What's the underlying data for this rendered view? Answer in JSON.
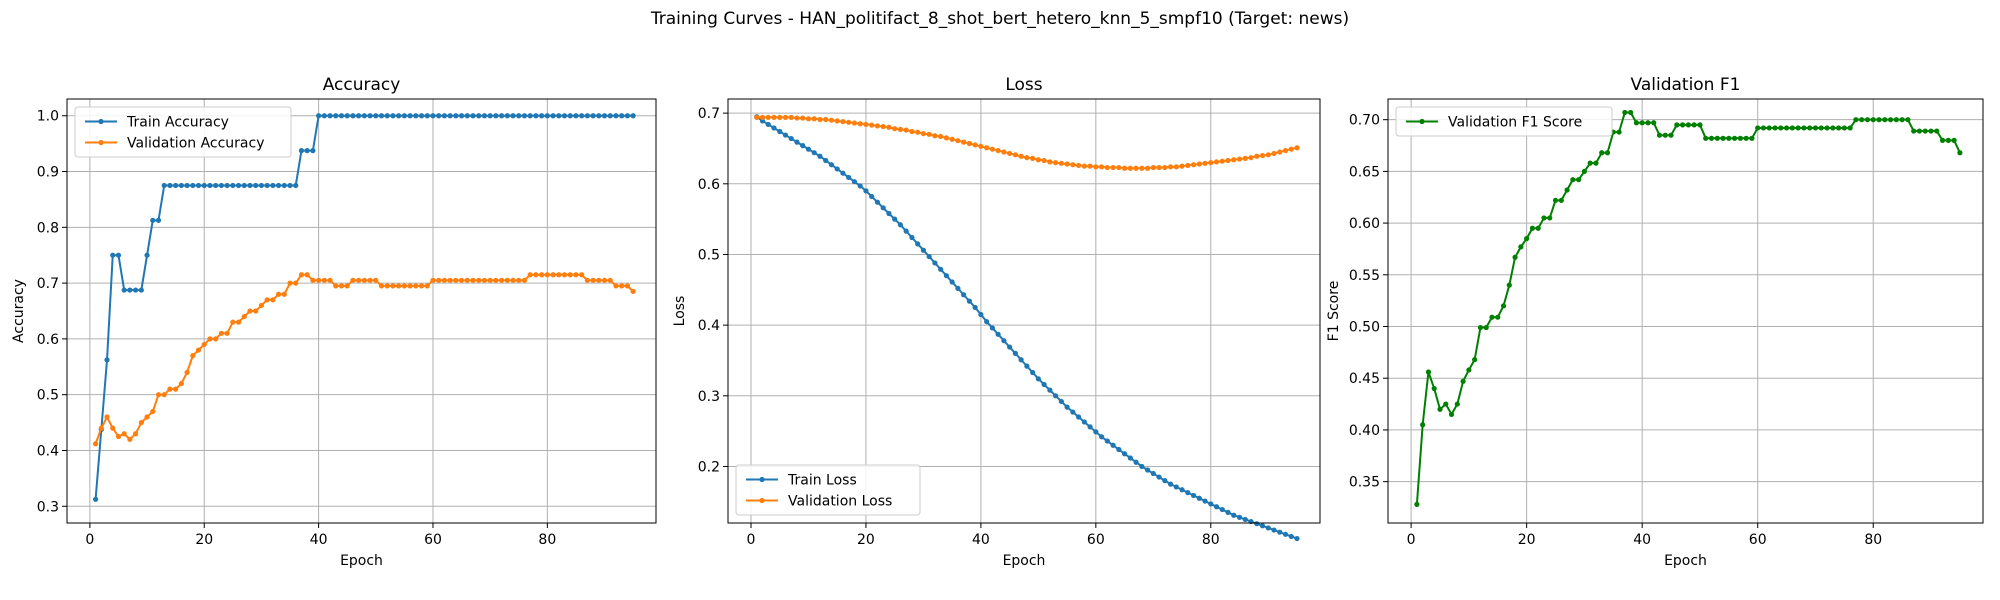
{
  "suptitle": "Training Curves - HAN_politifact_8_shot_bert_hetero_knn_5_smpf10 (Target: news)",
  "colors": {
    "blue": "#1f77b4",
    "orange": "#ff7f0e",
    "green": "#008000",
    "grid": "#b0b0b0"
  },
  "chart_data": [
    {
      "type": "line",
      "title": "Accuracy",
      "xlabel": "Epoch",
      "ylabel": "Accuracy",
      "xlim": [
        -4,
        99
      ],
      "ylim": [
        0.27,
        1.03
      ],
      "xticks": [
        0,
        20,
        40,
        60,
        80
      ],
      "yticks": [
        0.3,
        0.4,
        0.5,
        0.6,
        0.7,
        0.8,
        0.9,
        1.0
      ],
      "ytick_labels": [
        "0.3",
        "0.4",
        "0.5",
        "0.6",
        "0.7",
        "0.8",
        "0.9",
        "1.0"
      ],
      "grid": true,
      "legend_loc": "upper-left",
      "x": [
        1,
        2,
        3,
        4,
        5,
        6,
        7,
        8,
        9,
        10,
        11,
        12,
        13,
        14,
        15,
        16,
        17,
        18,
        19,
        20,
        21,
        22,
        23,
        24,
        25,
        26,
        27,
        28,
        29,
        30,
        31,
        32,
        33,
        34,
        35,
        36,
        37,
        38,
        39,
        40,
        41,
        42,
        43,
        44,
        45,
        46,
        47,
        48,
        49,
        50,
        51,
        52,
        53,
        54,
        55,
        56,
        57,
        58,
        59,
        60,
        61,
        62,
        63,
        64,
        65,
        66,
        67,
        68,
        69,
        70,
        71,
        72,
        73,
        74,
        75,
        76,
        77,
        78,
        79,
        80,
        81,
        82,
        83,
        84,
        85,
        86,
        87,
        88,
        89,
        90,
        91,
        92,
        93,
        94,
        95
      ],
      "series": [
        {
          "name": "Train Accuracy",
          "color": "#1f77b4",
          "values": [
            0.3125,
            0.4375,
            0.5625,
            0.75,
            0.75,
            0.6875,
            0.6875,
            0.6875,
            0.6875,
            0.75,
            0.8125,
            0.8125,
            0.875,
            0.875,
            0.875,
            0.875,
            0.875,
            0.875,
            0.875,
            0.875,
            0.875,
            0.875,
            0.875,
            0.875,
            0.875,
            0.875,
            0.875,
            0.875,
            0.875,
            0.875,
            0.875,
            0.875,
            0.875,
            0.875,
            0.875,
            0.875,
            0.9375,
            0.9375,
            0.9375,
            1,
            1,
            1,
            1,
            1,
            1,
            1,
            1,
            1,
            1,
            1,
            1,
            1,
            1,
            1,
            1,
            1,
            1,
            1,
            1,
            1,
            1,
            1,
            1,
            1,
            1,
            1,
            1,
            1,
            1,
            1,
            1,
            1,
            1,
            1,
            1,
            1,
            1,
            1,
            1,
            1,
            1,
            1,
            1,
            1,
            1,
            1,
            1,
            1,
            1,
            1,
            1,
            1,
            1,
            1,
            1
          ]
        },
        {
          "name": "Validation Accuracy",
          "color": "#ff7f0e",
          "values": [
            0.412,
            0.44,
            0.46,
            0.44,
            0.425,
            0.43,
            0.42,
            0.43,
            0.45,
            0.46,
            0.47,
            0.5,
            0.5,
            0.51,
            0.51,
            0.52,
            0.54,
            0.57,
            0.58,
            0.59,
            0.6,
            0.6,
            0.61,
            0.61,
            0.63,
            0.63,
            0.64,
            0.65,
            0.65,
            0.66,
            0.67,
            0.67,
            0.68,
            0.68,
            0.7,
            0.7,
            0.715,
            0.715,
            0.705,
            0.705,
            0.705,
            0.705,
            0.695,
            0.695,
            0.695,
            0.705,
            0.705,
            0.705,
            0.705,
            0.705,
            0.695,
            0.695,
            0.695,
            0.695,
            0.695,
            0.695,
            0.695,
            0.695,
            0.695,
            0.705,
            0.705,
            0.705,
            0.705,
            0.705,
            0.705,
            0.705,
            0.705,
            0.705,
            0.705,
            0.705,
            0.705,
            0.705,
            0.705,
            0.705,
            0.705,
            0.705,
            0.715,
            0.715,
            0.715,
            0.715,
            0.715,
            0.715,
            0.715,
            0.715,
            0.715,
            0.715,
            0.705,
            0.705,
            0.705,
            0.705,
            0.705,
            0.695,
            0.695,
            0.695,
            0.685
          ]
        }
      ]
    },
    {
      "type": "line",
      "title": "Loss",
      "xlabel": "Epoch",
      "ylabel": "Loss",
      "xlim": [
        -4,
        99
      ],
      "ylim": [
        0.12,
        0.72
      ],
      "xticks": [
        0,
        20,
        40,
        60,
        80
      ],
      "yticks": [
        0.2,
        0.3,
        0.4,
        0.5,
        0.6,
        0.7
      ],
      "ytick_labels": [
        "0.2",
        "0.3",
        "0.4",
        "0.5",
        "0.6",
        "0.7"
      ],
      "grid": true,
      "legend_loc": "lower-left",
      "x": [
        1,
        2,
        3,
        4,
        5,
        6,
        7,
        8,
        9,
        10,
        11,
        12,
        13,
        14,
        15,
        16,
        17,
        18,
        19,
        20,
        21,
        22,
        23,
        24,
        25,
        26,
        27,
        28,
        29,
        30,
        31,
        32,
        33,
        34,
        35,
        36,
        37,
        38,
        39,
        40,
        41,
        42,
        43,
        44,
        45,
        46,
        47,
        48,
        49,
        50,
        51,
        52,
        53,
        54,
        55,
        56,
        57,
        58,
        59,
        60,
        61,
        62,
        63,
        64,
        65,
        66,
        67,
        68,
        69,
        70,
        71,
        72,
        73,
        74,
        75,
        76,
        77,
        78,
        79,
        80,
        81,
        82,
        83,
        84,
        85,
        86,
        87,
        88,
        89,
        90,
        91,
        92,
        93,
        94,
        95
      ],
      "series": [
        {
          "name": "Train Loss",
          "color": "#1f77b4",
          "values": [
            0.695,
            0.689,
            0.684,
            0.679,
            0.674,
            0.669,
            0.664,
            0.659,
            0.654,
            0.649,
            0.644,
            0.639,
            0.633,
            0.627,
            0.621,
            0.615,
            0.609,
            0.603,
            0.597,
            0.59,
            0.582,
            0.574,
            0.566,
            0.558,
            0.55,
            0.542,
            0.533,
            0.524,
            0.515,
            0.506,
            0.497,
            0.488,
            0.479,
            0.47,
            0.461,
            0.452,
            0.443,
            0.434,
            0.425,
            0.415,
            0.405,
            0.396,
            0.387,
            0.378,
            0.369,
            0.36,
            0.351,
            0.342,
            0.333,
            0.324,
            0.316,
            0.308,
            0.3,
            0.292,
            0.284,
            0.277,
            0.27,
            0.263,
            0.256,
            0.249,
            0.242,
            0.236,
            0.23,
            0.224,
            0.218,
            0.212,
            0.206,
            0.2,
            0.195,
            0.19,
            0.185,
            0.18,
            0.175,
            0.171,
            0.167,
            0.163,
            0.159,
            0.155,
            0.151,
            0.147,
            0.143,
            0.139,
            0.135,
            0.131,
            0.128,
            0.125,
            0.122,
            0.119,
            0.116,
            0.113,
            0.11,
            0.107,
            0.104,
            0.101,
            0.098
          ]
        },
        {
          "name": "Validation Loss",
          "color": "#ff7f0e",
          "values": [
            0.694,
            0.694,
            0.694,
            0.694,
            0.694,
            0.694,
            0.694,
            0.693,
            0.693,
            0.692,
            0.692,
            0.691,
            0.691,
            0.69,
            0.689,
            0.688,
            0.687,
            0.686,
            0.685,
            0.684,
            0.683,
            0.682,
            0.681,
            0.68,
            0.678,
            0.677,
            0.676,
            0.674,
            0.673,
            0.671,
            0.67,
            0.668,
            0.667,
            0.665,
            0.663,
            0.661,
            0.659,
            0.657,
            0.655,
            0.653,
            0.651,
            0.649,
            0.647,
            0.645,
            0.643,
            0.641,
            0.639,
            0.637,
            0.636,
            0.634,
            0.633,
            0.631,
            0.63,
            0.629,
            0.628,
            0.627,
            0.626,
            0.625,
            0.625,
            0.624,
            0.624,
            0.623,
            0.623,
            0.623,
            0.622,
            0.622,
            0.622,
            0.622,
            0.622,
            0.623,
            0.623,
            0.623,
            0.624,
            0.624,
            0.625,
            0.626,
            0.627,
            0.628,
            0.629,
            0.63,
            0.631,
            0.632,
            0.633,
            0.634,
            0.635,
            0.636,
            0.637,
            0.639,
            0.64,
            0.641,
            0.643,
            0.645,
            0.647,
            0.649,
            0.651
          ]
        }
      ]
    },
    {
      "type": "line",
      "title": "Validation F1",
      "xlabel": "Epoch",
      "ylabel": "F1 Score",
      "xlim": [
        -4,
        99
      ],
      "ylim": [
        0.31,
        0.72
      ],
      "xticks": [
        0,
        20,
        40,
        60,
        80
      ],
      "yticks": [
        0.35,
        0.4,
        0.45,
        0.5,
        0.55,
        0.6,
        0.65,
        0.7
      ],
      "ytick_labels": [
        "0.35",
        "0.40",
        "0.45",
        "0.50",
        "0.55",
        "0.60",
        "0.65",
        "0.70"
      ],
      "grid": true,
      "legend_loc": "upper-left",
      "x": [
        1,
        2,
        3,
        4,
        5,
        6,
        7,
        8,
        9,
        10,
        11,
        12,
        13,
        14,
        15,
        16,
        17,
        18,
        19,
        20,
        21,
        22,
        23,
        24,
        25,
        26,
        27,
        28,
        29,
        30,
        31,
        32,
        33,
        34,
        35,
        36,
        37,
        38,
        39,
        40,
        41,
        42,
        43,
        44,
        45,
        46,
        47,
        48,
        49,
        50,
        51,
        52,
        53,
        54,
        55,
        56,
        57,
        58,
        59,
        60,
        61,
        62,
        63,
        64,
        65,
        66,
        67,
        68,
        69,
        70,
        71,
        72,
        73,
        74,
        75,
        76,
        77,
        78,
        79,
        80,
        81,
        82,
        83,
        84,
        85,
        86,
        87,
        88,
        89,
        90,
        91,
        92,
        93,
        94,
        95
      ],
      "series": [
        {
          "name": "Validation F1 Score",
          "color": "#008000",
          "values": [
            0.328,
            0.405,
            0.456,
            0.44,
            0.42,
            0.425,
            0.415,
            0.425,
            0.447,
            0.458,
            0.468,
            0.499,
            0.499,
            0.509,
            0.509,
            0.52,
            0.54,
            0.567,
            0.577,
            0.585,
            0.595,
            0.595,
            0.605,
            0.605,
            0.622,
            0.622,
            0.632,
            0.642,
            0.642,
            0.65,
            0.658,
            0.658,
            0.668,
            0.668,
            0.688,
            0.688,
            0.707,
            0.707,
            0.697,
            0.697,
            0.697,
            0.697,
            0.685,
            0.685,
            0.685,
            0.695,
            0.695,
            0.695,
            0.695,
            0.695,
            0.682,
            0.682,
            0.682,
            0.682,
            0.682,
            0.682,
            0.682,
            0.682,
            0.682,
            0.692,
            0.692,
            0.692,
            0.692,
            0.692,
            0.692,
            0.692,
            0.692,
            0.692,
            0.692,
            0.692,
            0.692,
            0.692,
            0.692,
            0.692,
            0.692,
            0.692,
            0.7,
            0.7,
            0.7,
            0.7,
            0.7,
            0.7,
            0.7,
            0.7,
            0.7,
            0.7,
            0.689,
            0.689,
            0.689,
            0.689,
            0.689,
            0.68,
            0.68,
            0.68,
            0.668
          ]
        }
      ]
    }
  ]
}
